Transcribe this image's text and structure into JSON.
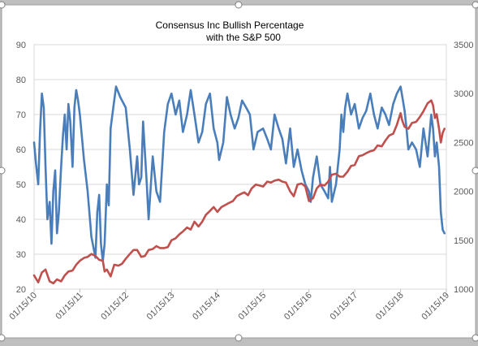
{
  "chart_data": {
    "type": "line",
    "title": "Consensus Inc Bullish Percentage",
    "subtitle": "with the S&P 500",
    "xlabel": "",
    "ylabel": "",
    "x_tick_labels": [
      "01/15/10",
      "01/15/11",
      "01/15/12",
      "01/15/13",
      "01/15/14",
      "01/15/15",
      "01/15/16",
      "01/15/17",
      "01/15/18",
      "01/15/19"
    ],
    "y_left": {
      "ticks": [
        20,
        30,
        40,
        50,
        60,
        70,
        80,
        90
      ],
      "ylim": [
        20,
        90
      ]
    },
    "y_right": {
      "ticks": [
        1000,
        1500,
        2000,
        2500,
        3000,
        3500
      ],
      "ylim": [
        1000,
        3500
      ]
    },
    "grid": true,
    "legend": "none",
    "series": [
      {
        "name": "",
        "axis": "left",
        "color": "#4a7ebb",
        "x": [
          2010.04,
          2010.08,
          2010.13,
          2010.17,
          2010.21,
          2010.25,
          2010.29,
          2010.33,
          2010.38,
          2010.42,
          2010.46,
          2010.5,
          2010.54,
          2010.58,
          2010.63,
          2010.67,
          2010.71,
          2010.75,
          2010.79,
          2010.83,
          2010.88,
          2010.92,
          2010.96,
          2011.0,
          2011.04,
          2011.13,
          2011.21,
          2011.29,
          2011.38,
          2011.42,
          2011.46,
          2011.5,
          2011.54,
          2011.58,
          2011.63,
          2011.67,
          2011.71,
          2011.75,
          2011.83,
          2011.92,
          2012.04,
          2012.13,
          2012.21,
          2012.29,
          2012.33,
          2012.38,
          2012.42,
          2012.5,
          2012.54,
          2012.63,
          2012.71,
          2012.79,
          2012.88,
          2012.96,
          2013.04,
          2013.13,
          2013.21,
          2013.29,
          2013.38,
          2013.46,
          2013.54,
          2013.63,
          2013.71,
          2013.79,
          2013.88,
          2013.96,
          2014.04,
          2014.08,
          2014.17,
          2014.25,
          2014.33,
          2014.42,
          2014.5,
          2014.58,
          2014.67,
          2014.75,
          2014.83,
          2014.92,
          2015.04,
          2015.13,
          2015.21,
          2015.29,
          2015.38,
          2015.46,
          2015.54,
          2015.63,
          2015.71,
          2015.79,
          2015.88,
          2015.96,
          2016.04,
          2016.08,
          2016.13,
          2016.21,
          2016.29,
          2016.38,
          2016.46,
          2016.5,
          2016.54,
          2016.63,
          2016.71,
          2016.75,
          2016.79,
          2016.83,
          2016.88,
          2016.96,
          2017.04,
          2017.13,
          2017.21,
          2017.29,
          2017.38,
          2017.46,
          2017.54,
          2017.63,
          2017.71,
          2017.79,
          2017.88,
          2017.96,
          2018.04,
          2018.08,
          2018.13,
          2018.17,
          2018.21,
          2018.29,
          2018.38,
          2018.46,
          2018.54,
          2018.63,
          2018.71,
          2018.75,
          2018.79,
          2018.83,
          2018.88,
          2018.92,
          2018.96,
          2019.0
        ],
        "values": [
          62,
          56,
          50,
          65,
          76,
          72,
          55,
          40,
          45,
          33,
          48,
          54,
          36,
          42,
          55,
          64,
          70,
          60,
          73,
          68,
          55,
          72,
          77,
          74,
          70,
          57,
          48,
          35,
          29,
          42,
          47,
          33,
          28,
          33,
          50,
          44,
          66,
          70,
          78,
          75,
          72,
          60,
          47,
          58,
          50,
          52,
          68,
          50,
          40,
          58,
          48,
          45,
          65,
          73,
          76,
          70,
          74,
          65,
          70,
          77,
          70,
          62,
          65,
          73,
          76,
          66,
          62,
          57,
          62,
          75,
          70,
          66,
          69,
          74,
          72,
          70,
          60,
          65,
          66,
          63,
          60,
          70,
          66,
          63,
          56,
          66,
          55,
          60,
          54,
          50,
          48,
          45,
          52,
          58,
          50,
          48,
          46,
          55,
          45,
          50,
          60,
          70,
          65,
          72,
          76,
          70,
          73,
          66,
          69,
          71,
          76,
          70,
          66,
          72,
          70,
          67,
          73,
          76,
          78,
          75,
          71,
          66,
          60,
          62,
          60,
          55,
          66,
          58,
          70,
          66,
          58,
          62,
          55,
          42,
          37,
          36
        ]
      },
      {
        "name": "",
        "axis": "right",
        "color": "#c0504d",
        "x": [
          2010.04,
          2010.13,
          2010.21,
          2010.29,
          2010.38,
          2010.46,
          2010.54,
          2010.63,
          2010.71,
          2010.79,
          2010.88,
          2010.96,
          2011.04,
          2011.13,
          2011.21,
          2011.29,
          2011.38,
          2011.46,
          2011.54,
          2011.58,
          2011.63,
          2011.71,
          2011.79,
          2011.88,
          2011.96,
          2012.04,
          2012.13,
          2012.21,
          2012.29,
          2012.38,
          2012.46,
          2012.54,
          2012.63,
          2012.71,
          2012.79,
          2012.88,
          2012.96,
          2013.04,
          2013.13,
          2013.21,
          2013.29,
          2013.38,
          2013.46,
          2013.54,
          2013.63,
          2013.71,
          2013.79,
          2013.88,
          2013.96,
          2014.04,
          2014.13,
          2014.21,
          2014.29,
          2014.38,
          2014.46,
          2014.54,
          2014.63,
          2014.71,
          2014.79,
          2014.88,
          2014.96,
          2015.04,
          2015.13,
          2015.21,
          2015.29,
          2015.38,
          2015.46,
          2015.54,
          2015.63,
          2015.71,
          2015.79,
          2015.88,
          2015.96,
          2016.04,
          2016.13,
          2016.21,
          2016.29,
          2016.38,
          2016.46,
          2016.54,
          2016.63,
          2016.71,
          2016.79,
          2016.88,
          2016.96,
          2017.04,
          2017.13,
          2017.21,
          2017.29,
          2017.38,
          2017.46,
          2017.54,
          2017.63,
          2017.71,
          2017.79,
          2017.88,
          2017.96,
          2018.04,
          2018.08,
          2018.13,
          2018.21,
          2018.29,
          2018.38,
          2018.46,
          2018.54,
          2018.63,
          2018.71,
          2018.75,
          2018.79,
          2018.83,
          2018.88,
          2018.92,
          2018.96,
          2019.0
        ],
        "values": [
          1140,
          1070,
          1170,
          1200,
          1080,
          1060,
          1100,
          1080,
          1140,
          1180,
          1190,
          1250,
          1290,
          1320,
          1330,
          1360,
          1340,
          1300,
          1290,
          1180,
          1200,
          1130,
          1250,
          1240,
          1260,
          1310,
          1360,
          1400,
          1400,
          1330,
          1340,
          1400,
          1410,
          1440,
          1420,
          1420,
          1430,
          1500,
          1520,
          1560,
          1590,
          1630,
          1610,
          1690,
          1640,
          1690,
          1760,
          1800,
          1840,
          1790,
          1840,
          1860,
          1880,
          1900,
          1950,
          1970,
          1990,
          1960,
          2030,
          2070,
          2060,
          2050,
          2100,
          2090,
          2110,
          2120,
          2100,
          2090,
          2000,
          1950,
          2070,
          2080,
          2050,
          1900,
          1930,
          2030,
          2070,
          2060,
          2100,
          2170,
          2180,
          2150,
          2150,
          2200,
          2260,
          2270,
          2360,
          2370,
          2390,
          2410,
          2420,
          2470,
          2460,
          2520,
          2570,
          2590,
          2680,
          2800,
          2720,
          2660,
          2640,
          2700,
          2710,
          2760,
          2820,
          2900,
          2930,
          2880,
          2750,
          2790,
          2640,
          2500,
          2600,
          2640
        ]
      }
    ]
  }
}
